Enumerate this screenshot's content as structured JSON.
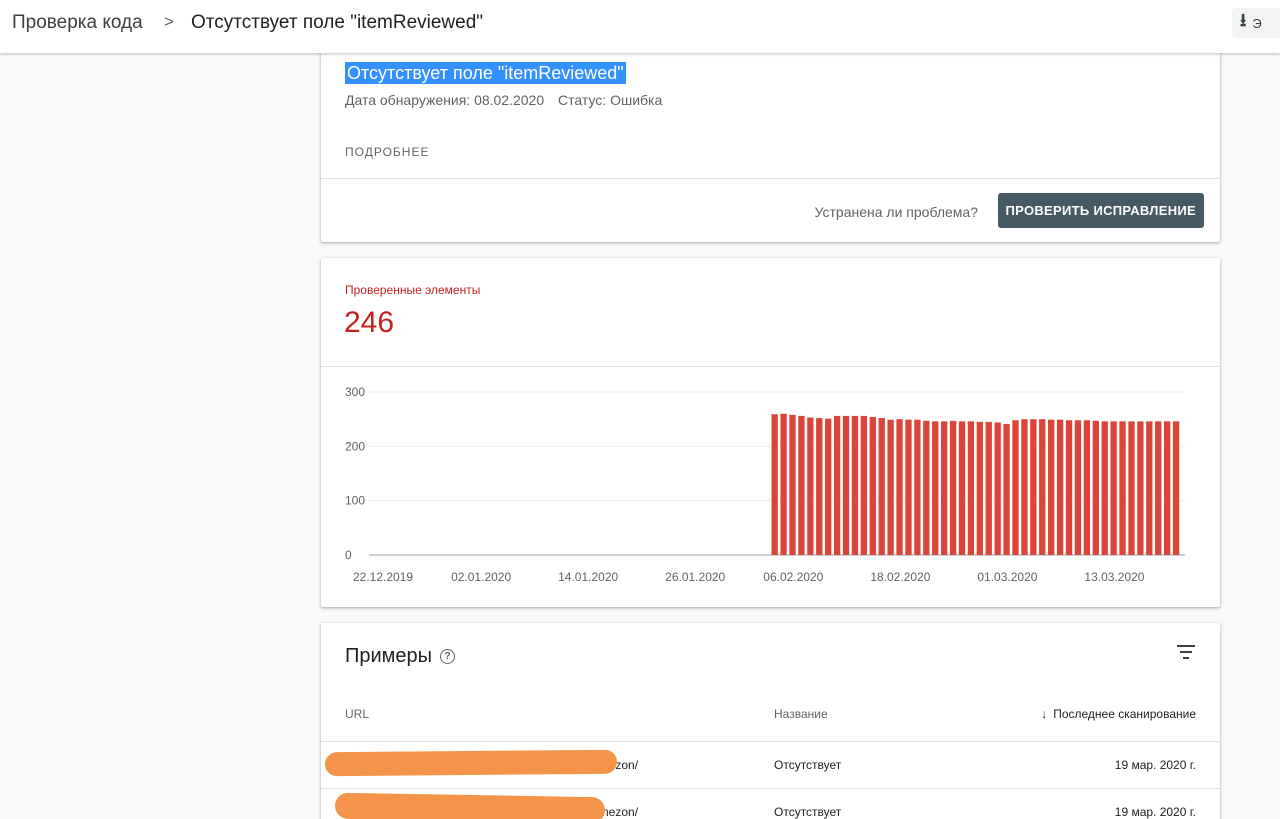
{
  "breadcrumb": {
    "root": "Проверка кода",
    "separator": ">",
    "current": "Отсутствует поле \"itemReviewed\""
  },
  "toolbar": {
    "export_icon": "download-icon",
    "export_label": "Э"
  },
  "issue": {
    "title": "Отсутствует поле \"itemReviewed\"",
    "detected": "Дата обнаружения: 08.02.2020",
    "status": "Статус: Ошибка",
    "more": "ПОДРОБНЕЕ",
    "fixed_question": "Устранена ли проблема?",
    "validate_button": "ПРОВЕРИТЬ ИСПРАВЛЕНИЕ"
  },
  "metric": {
    "label": "Проверенные элементы",
    "value": "246"
  },
  "colors": {
    "bar": "#db4437",
    "accent_red": "#c5221f",
    "button": "#455a64",
    "selection": "#3390ff",
    "redaction": "#f4944a"
  },
  "chart_data": {
    "type": "bar",
    "title": "",
    "xlabel": "",
    "ylabel": "",
    "ylim": [
      0,
      300
    ],
    "y_ticks": [
      "0",
      "100",
      "200",
      "300"
    ],
    "x_ticks": [
      "22.12.2019",
      "02.01.2020",
      "14.01.2020",
      "26.01.2020",
      "06.02.2020",
      "18.02.2020",
      "01.03.2020",
      "13.03.2020"
    ],
    "x_start": "22.12.2019",
    "grid": true,
    "bar_start": "04.02.2020",
    "values": [
      259,
      260,
      258,
      256,
      253,
      252,
      251,
      256,
      256,
      256,
      256,
      254,
      252,
      249,
      250,
      249,
      249,
      247,
      246,
      246,
      247,
      246,
      246,
      245,
      245,
      244,
      241,
      248,
      250,
      250,
      250,
      249,
      249,
      248,
      248,
      248,
      247,
      246,
      246,
      246,
      246,
      246,
      246,
      246,
      246,
      246
    ]
  },
  "examples": {
    "title": "Примеры",
    "help_icon": "help-icon",
    "filter_icon": "filter-icon",
    "columns": {
      "url": "URL",
      "name": "Название",
      "sort_arrow": "↓",
      "date": "Последнее сканирование"
    },
    "rows": [
      {
        "url": "nezon/",
        "name": "Отсутствует",
        "date": "19 мар. 2020 г."
      },
      {
        "url": "nezon/",
        "name": "Отсутствует",
        "date": "19 мар. 2020 г."
      }
    ]
  }
}
